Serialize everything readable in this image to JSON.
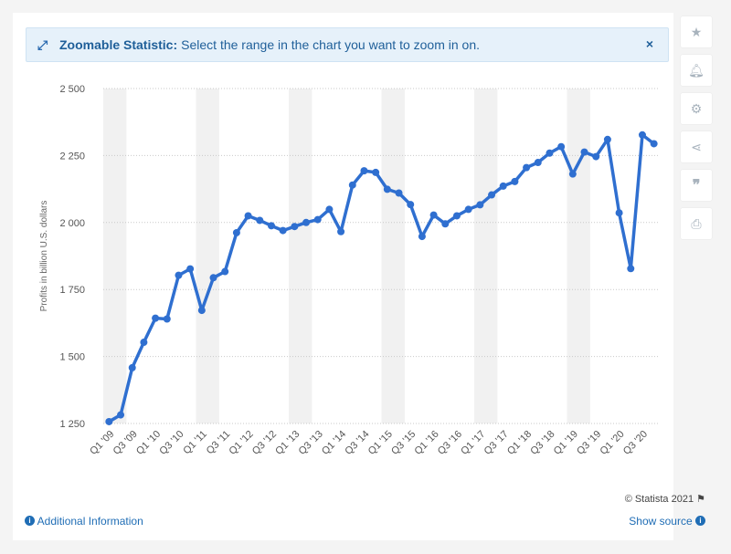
{
  "banner": {
    "title": "Zoomable Statistic:",
    "message": "Select the range in the chart you want to zoom in on.",
    "close_label": "×"
  },
  "toolbar": {
    "icons": [
      "star-icon",
      "bell-icon",
      "gear-icon",
      "share-icon",
      "quote-icon",
      "print-icon"
    ]
  },
  "footer": {
    "credit": "© Statista 2021",
    "additional_info": "Additional Information",
    "show_source": "Show source"
  },
  "chart_data": {
    "type": "line",
    "ylabel": "Profits in billion U.S. dollars",
    "ylim": [
      1250,
      2500
    ],
    "yticks": [
      1250,
      1500,
      1750,
      2000,
      2250,
      2500
    ],
    "ytick_labels": [
      "1 250",
      "1 500",
      "1 750",
      "2 000",
      "2 250",
      "2 500"
    ],
    "xtick_labels": [
      "Q1 '09",
      "Q3 '09",
      "Q1 '10",
      "Q3 '10",
      "Q1 '11",
      "Q3 '11",
      "Q1 '12",
      "Q3 '12",
      "Q1 '13",
      "Q3 '13",
      "Q1 '14",
      "Q3 '14",
      "Q1 '15",
      "Q3 '15",
      "Q1 '16",
      "Q3 '16",
      "Q1 '17",
      "Q3 '17",
      "Q1 '18",
      "Q3 '18",
      "Q1 '19",
      "Q3 '19",
      "Q1 '20",
      "Q3 '20"
    ],
    "color": "#2f6fd0",
    "grid": true,
    "series": [
      {
        "values": [
          1257,
          1282,
          1458,
          1553,
          1643,
          1640,
          1803,
          1827,
          1672,
          1794,
          1817,
          1962,
          2025,
          2008,
          1988,
          1970,
          1985,
          2000,
          2011,
          2049,
          1966,
          2140,
          2193,
          2187,
          2124,
          2110,
          2067,
          1948,
          2028,
          1995,
          2025,
          2049,
          2066,
          2103,
          2136,
          2153,
          2205,
          2224,
          2259,
          2283,
          2181,
          2263,
          2246,
          2310,
          2036,
          1828,
          2327,
          2294
        ]
      }
    ]
  }
}
